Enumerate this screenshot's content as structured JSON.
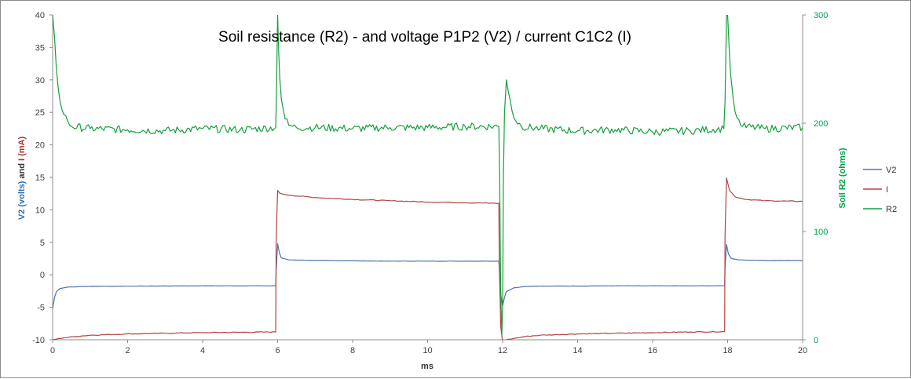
{
  "chart_data": {
    "type": "line",
    "title": "Soil resistance (R2) - and voltage P1P2 (V2) / current C1C2 (I)",
    "xlabel": "ms",
    "ylabel_left_parts": [
      {
        "text": "V2 (volts)",
        "color": "#2e6fb5"
      },
      {
        "text": " and ",
        "color": "#333333"
      },
      {
        "text": "I (mA)",
        "color": "#b03030"
      }
    ],
    "ylabel_right": "Soil R2 (ohms)",
    "xlim": [
      0,
      20
    ],
    "ylim_left": [
      -10,
      40
    ],
    "ylim_right": [
      0,
      300
    ],
    "x_ticks": [
      0,
      2,
      4,
      6,
      8,
      10,
      12,
      14,
      16,
      18,
      20
    ],
    "y_ticks_left": [
      -10,
      -5,
      0,
      5,
      10,
      15,
      20,
      25,
      30,
      35,
      40
    ],
    "y_ticks_right": [
      0,
      100,
      200,
      300
    ],
    "legend_position": "right",
    "colors": {
      "V2": "#4f72a8",
      "I": "#b04543",
      "R2": "#14a03c",
      "axis_right": "#00a04a"
    },
    "series": [
      {
        "name": "V2",
        "axis": "left",
        "x": [
          0,
          0.05,
          0.1,
          0.2,
          0.4,
          0.8,
          2,
          4,
          5.95,
          5.96,
          6.0,
          6.05,
          6.1,
          6.3,
          7,
          9,
          11,
          11.9,
          11.91,
          11.95,
          12.0,
          12.05,
          12.1,
          12.3,
          12.6,
          13,
          15,
          17,
          17.92,
          17.93,
          17.97,
          18.02,
          18.1,
          18.3,
          19,
          20
        ],
        "y": [
          -5.2,
          -3.5,
          -2.6,
          -2.1,
          -1.9,
          -1.8,
          -1.75,
          -1.7,
          -1.7,
          0.5,
          4.8,
          3.3,
          2.6,
          2.3,
          2.2,
          2.1,
          2.1,
          2.1,
          1.0,
          -3.0,
          -4.8,
          -3.5,
          -2.6,
          -2.0,
          -1.8,
          -1.75,
          -1.7,
          -1.7,
          -1.7,
          1.0,
          4.7,
          3.2,
          2.5,
          2.3,
          2.2,
          2.2
        ]
      },
      {
        "name": "I",
        "axis": "left",
        "x": [
          0,
          0.1,
          0.3,
          0.6,
          1,
          2,
          3,
          4,
          5,
          5.95,
          5.96,
          6.0,
          6.05,
          6.15,
          6.4,
          7,
          8,
          9,
          10,
          11,
          11.9,
          11.91,
          11.95,
          12.0,
          12.1,
          12.3,
          12.6,
          13,
          14,
          15,
          16,
          17,
          17.92,
          17.93,
          17.97,
          18.05,
          18.2,
          18.5,
          19,
          20
        ],
        "y": [
          -10,
          -9.9,
          -9.7,
          -9.5,
          -9.3,
          -9.1,
          -9.0,
          -8.9,
          -8.85,
          -8.8,
          5.0,
          13.0,
          12.6,
          12.4,
          12.2,
          11.9,
          11.6,
          11.4,
          11.2,
          11.1,
          11.0,
          2.0,
          -8.0,
          -10.3,
          -10.0,
          -9.8,
          -9.5,
          -9.3,
          -9.1,
          -9.0,
          -8.9,
          -8.8,
          -8.75,
          6.0,
          14.9,
          13.0,
          12.0,
          11.6,
          11.4,
          11.3
        ]
      },
      {
        "name": "R2",
        "axis": "right",
        "x": [
          0,
          0.05,
          0.1,
          0.15,
          0.2,
          0.3,
          0.4,
          0.5,
          1,
          2,
          3,
          4,
          5,
          5.95,
          5.97,
          6.0,
          6.03,
          6.06,
          6.1,
          6.2,
          6.3,
          6.5,
          7,
          8,
          9,
          10,
          11,
          11.9,
          11.92,
          11.95,
          11.98,
          12.0,
          12.02,
          12.05,
          12.1,
          12.2,
          12.3,
          12.5,
          13,
          14,
          15,
          16,
          17,
          17.9,
          17.93,
          17.97,
          18.0,
          18.04,
          18.08,
          18.15,
          18.25,
          18.4,
          19,
          20
        ],
        "y": [
          300,
          280,
          250,
          232,
          220,
          208,
          202,
          197,
          195,
          194,
          193,
          195,
          194,
          196,
          230,
          300,
          265,
          240,
          222,
          204,
          198,
          196,
          196,
          195,
          196,
          196,
          197,
          197,
          150,
          45,
          5,
          30,
          150,
          210,
          240,
          222,
          205,
          197,
          195,
          193,
          194,
          192,
          193,
          195,
          220,
          300,
          300,
          270,
          245,
          222,
          205,
          197,
          195,
          196
        ]
      }
    ]
  }
}
